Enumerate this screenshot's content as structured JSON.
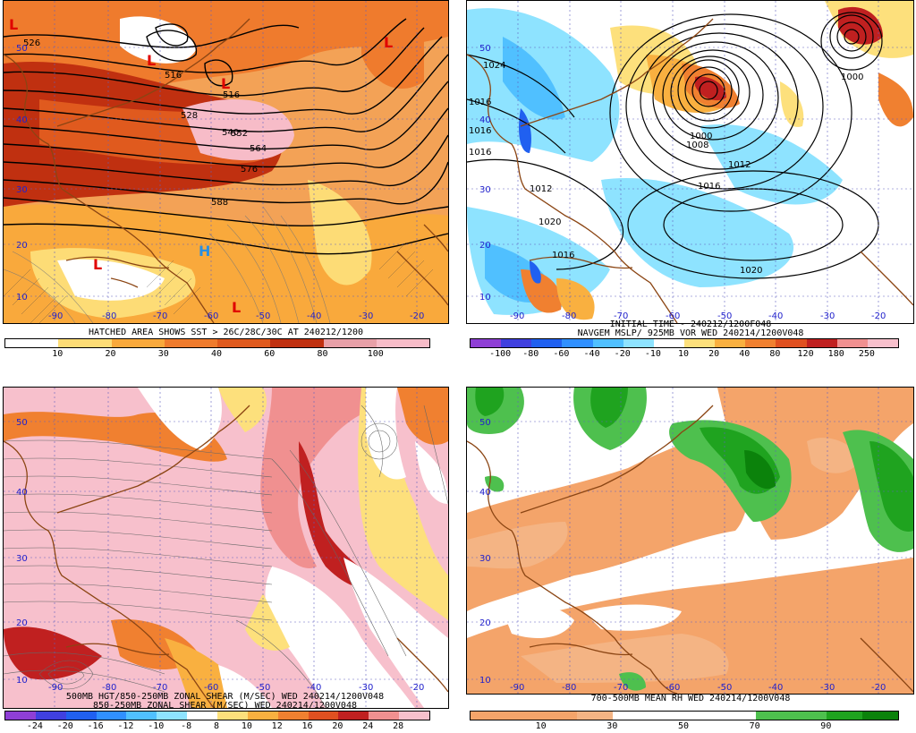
{
  "panels": [
    {
      "id": "p1",
      "title_lines": [
        "HATCHED AREA SHOWS SST > 26C/28C/30C AT 240212/1200"
      ],
      "colorbar": {
        "colors": [
          "#ffffff",
          "#ffffff",
          "#fddc76",
          "#fddc76",
          "#f9a93c",
          "#f9a93c",
          "#ef7b2d",
          "#ef7b2d",
          "#e05a1e",
          "#e05a1e",
          "#c03010",
          "#c03010",
          "#e8a0a8",
          "#e8a0a8",
          "#f7bcc8",
          "#f7bcc8"
        ],
        "ticks": [
          "10",
          "20",
          "30",
          "40",
          "60",
          "80",
          "100"
        ]
      },
      "lon_labels": [
        "-90",
        "-80",
        "-70",
        "-60",
        "-50",
        "-40",
        "-30",
        "-20"
      ],
      "lat_labels": [
        "50",
        "40",
        "30",
        "20",
        "10"
      ],
      "contour_labels": [
        "526",
        "516",
        "516",
        "528",
        "540",
        "552",
        "564",
        "576",
        "588"
      ],
      "pressure_centers": [
        "L",
        "L",
        "L",
        "L",
        "L",
        "H",
        "L"
      ]
    },
    {
      "id": "p2",
      "title_lines": [
        "INITIAL TIME - 240212/1200F048",
        "NAVGEM MSLP/ 925MB VOR WED 240214/1200V048"
      ],
      "colorbar": {
        "colors": [
          "#8f3fd6",
          "#4040e0",
          "#2060f0",
          "#3090ff",
          "#50c0ff",
          "#8ee3ff",
          "#ffffff",
          "#fde07c",
          "#f9b040",
          "#f08030",
          "#e05020",
          "#c02020",
          "#f09090",
          "#f7c0cc"
        ],
        "ticks": [
          "-100",
          "-80",
          "-60",
          "-40",
          "-20",
          "-10",
          "10",
          "20",
          "40",
          "80",
          "120",
          "180",
          "250"
        ]
      },
      "lon_labels": [
        "-90",
        "-80",
        "-70",
        "-60",
        "-50",
        "-40",
        "-30",
        "-20"
      ],
      "lat_labels": [
        "50",
        "40",
        "30",
        "20",
        "10"
      ],
      "contour_labels": [
        "1016",
        "1024",
        "1016",
        "1020",
        "1012",
        "1008",
        "1016",
        "1012",
        "1000",
        "1020",
        "1016",
        "1000",
        "1016"
      ]
    },
    {
      "id": "p3",
      "title_lines": [
        "500MB HGT/850-250MB ZONAL SHEAR (M/SEC) WED 240214/1200V048",
        "850-250MB ZONAL SHEAR (M/SEC) WED 240214/1200V048"
      ],
      "colorbar": {
        "colors": [
          "#8f3fd6",
          "#4040e0",
          "#2060f0",
          "#3090ff",
          "#50c0ff",
          "#8ee3ff",
          "#ffffff",
          "#fde07c",
          "#f9b040",
          "#f08030",
          "#e05020",
          "#c02020",
          "#f09090",
          "#f7c0cc"
        ],
        "ticks": [
          "-24",
          "-20",
          "-16",
          "-12",
          "-10",
          "-8",
          "8",
          "10",
          "12",
          "16",
          "20",
          "24",
          "28"
        ]
      },
      "lon_labels": [
        "-90",
        "-80",
        "-70",
        "-60",
        "-50",
        "-40",
        "-30",
        "-20"
      ],
      "lat_labels": [
        "50",
        "40",
        "30",
        "20",
        "10"
      ]
    },
    {
      "id": "p4",
      "title_lines": [
        "700-500MB MEAN RH WED 240214/1200V048"
      ],
      "colorbar": {
        "colors": [
          "#f4a46a",
          "#f4a46a",
          "#f4a46a",
          "#f4b484",
          "#ffffff",
          "#ffffff",
          "#ffffff",
          "#ffffff",
          "#4ec04e",
          "#4ec04e",
          "#1fa31f",
          "#0b820b"
        ],
        "ticks": [
          "10",
          "30",
          "50",
          "70",
          "90"
        ]
      },
      "lon_labels": [
        "-90",
        "-80",
        "-70",
        "-60",
        "-50",
        "-40",
        "-30",
        "-20"
      ],
      "lat_labels": [
        "50",
        "40",
        "30",
        "20",
        "10"
      ]
    }
  ],
  "colors": {
    "coast": "#8b4513",
    "grid": "#6060c0",
    "lowlabel": "#e00000",
    "highlabel": "#2a8fe0"
  }
}
